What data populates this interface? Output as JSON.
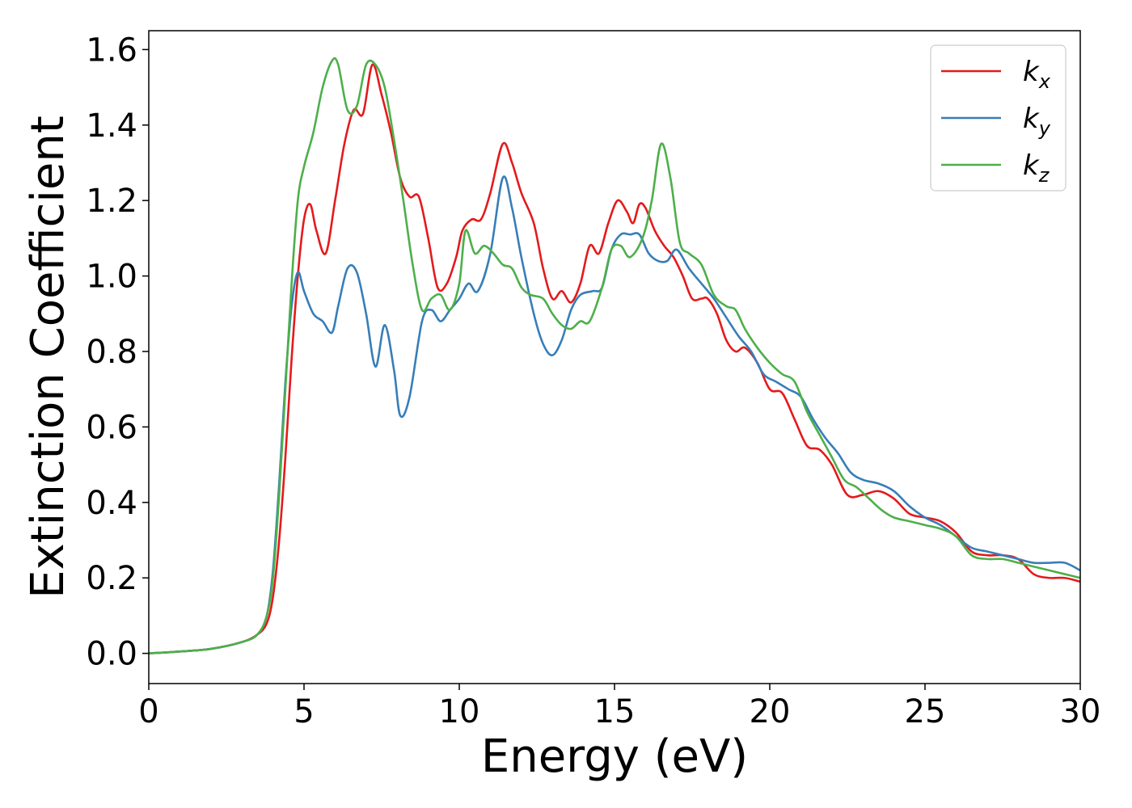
{
  "chart_data": {
    "type": "line",
    "xlabel": "Energy (eV)",
    "ylabel": "Extinction Coefficient",
    "xlim": [
      0,
      30
    ],
    "ylim": [
      -0.08,
      1.65
    ],
    "xticks": [
      0,
      5,
      10,
      15,
      20,
      25,
      30
    ],
    "xtick_labels": [
      "0",
      "5",
      "10",
      "15",
      "20",
      "25",
      "30"
    ],
    "yticks": [
      0.0,
      0.2,
      0.4,
      0.6,
      0.8,
      1.0,
      1.2,
      1.4,
      1.6
    ],
    "ytick_labels": [
      "0.0",
      "0.2",
      "0.4",
      "0.6",
      "0.8",
      "1.0",
      "1.2",
      "1.4",
      "1.6"
    ],
    "grid": false,
    "legend_position": "top-right",
    "series": [
      {
        "name": "k",
        "subscript": "x",
        "color": "#e41a1c",
        "points": [
          [
            0,
            0
          ],
          [
            1,
            0.005
          ],
          [
            2,
            0.012
          ],
          [
            3,
            0.03
          ],
          [
            3.5,
            0.05
          ],
          [
            3.8,
            0.08
          ],
          [
            4.0,
            0.15
          ],
          [
            4.2,
            0.3
          ],
          [
            4.4,
            0.52
          ],
          [
            4.6,
            0.78
          ],
          [
            4.8,
            1.0
          ],
          [
            5.0,
            1.15
          ],
          [
            5.2,
            1.19
          ],
          [
            5.4,
            1.12
          ],
          [
            5.7,
            1.06
          ],
          [
            6.0,
            1.2
          ],
          [
            6.3,
            1.35
          ],
          [
            6.6,
            1.44
          ],
          [
            6.9,
            1.43
          ],
          [
            7.2,
            1.56
          ],
          [
            7.5,
            1.48
          ],
          [
            7.8,
            1.38
          ],
          [
            8.1,
            1.26
          ],
          [
            8.4,
            1.21
          ],
          [
            8.7,
            1.21
          ],
          [
            9.0,
            1.1
          ],
          [
            9.3,
            0.97
          ],
          [
            9.6,
            0.98
          ],
          [
            9.9,
            1.05
          ],
          [
            10.1,
            1.12
          ],
          [
            10.4,
            1.15
          ],
          [
            10.7,
            1.15
          ],
          [
            11.0,
            1.22
          ],
          [
            11.4,
            1.35
          ],
          [
            11.7,
            1.3
          ],
          [
            12.0,
            1.22
          ],
          [
            12.4,
            1.14
          ],
          [
            12.7,
            1.02
          ],
          [
            13.0,
            0.94
          ],
          [
            13.3,
            0.96
          ],
          [
            13.6,
            0.93
          ],
          [
            13.9,
            0.98
          ],
          [
            14.2,
            1.08
          ],
          [
            14.5,
            1.06
          ],
          [
            14.8,
            1.14
          ],
          [
            15.1,
            1.2
          ],
          [
            15.4,
            1.17
          ],
          [
            15.6,
            1.14
          ],
          [
            15.8,
            1.19
          ],
          [
            16.0,
            1.18
          ],
          [
            16.3,
            1.12
          ],
          [
            16.6,
            1.08
          ],
          [
            16.9,
            1.05
          ],
          [
            17.2,
            1.0
          ],
          [
            17.5,
            0.94
          ],
          [
            17.8,
            0.94
          ],
          [
            18.0,
            0.94
          ],
          [
            18.3,
            0.9
          ],
          [
            18.6,
            0.83
          ],
          [
            18.9,
            0.8
          ],
          [
            19.2,
            0.81
          ],
          [
            19.6,
            0.77
          ],
          [
            20.0,
            0.7
          ],
          [
            20.4,
            0.69
          ],
          [
            20.8,
            0.62
          ],
          [
            21.2,
            0.55
          ],
          [
            21.6,
            0.54
          ],
          [
            22.0,
            0.5
          ],
          [
            22.5,
            0.42
          ],
          [
            23.0,
            0.42
          ],
          [
            23.5,
            0.43
          ],
          [
            24.0,
            0.41
          ],
          [
            24.5,
            0.37
          ],
          [
            25.0,
            0.36
          ],
          [
            25.5,
            0.35
          ],
          [
            26.0,
            0.32
          ],
          [
            26.5,
            0.27
          ],
          [
            27.0,
            0.26
          ],
          [
            27.5,
            0.26
          ],
          [
            28.0,
            0.25
          ],
          [
            28.5,
            0.21
          ],
          [
            29.0,
            0.2
          ],
          [
            29.5,
            0.2
          ],
          [
            30,
            0.19
          ]
        ]
      },
      {
        "name": "k",
        "subscript": "y",
        "color": "#377eb8",
        "points": [
          [
            0,
            0
          ],
          [
            1,
            0.005
          ],
          [
            2,
            0.012
          ],
          [
            3,
            0.03
          ],
          [
            3.5,
            0.05
          ],
          [
            3.8,
            0.1
          ],
          [
            4.0,
            0.22
          ],
          [
            4.2,
            0.45
          ],
          [
            4.4,
            0.72
          ],
          [
            4.6,
            0.92
          ],
          [
            4.8,
            1.01
          ],
          [
            5.0,
            0.96
          ],
          [
            5.3,
            0.9
          ],
          [
            5.6,
            0.88
          ],
          [
            5.9,
            0.85
          ],
          [
            6.1,
            0.92
          ],
          [
            6.4,
            1.02
          ],
          [
            6.7,
            1.01
          ],
          [
            7.0,
            0.9
          ],
          [
            7.3,
            0.76
          ],
          [
            7.6,
            0.87
          ],
          [
            7.9,
            0.75
          ],
          [
            8.1,
            0.63
          ],
          [
            8.4,
            0.68
          ],
          [
            8.8,
            0.88
          ],
          [
            9.1,
            0.91
          ],
          [
            9.4,
            0.88
          ],
          [
            9.7,
            0.91
          ],
          [
            10.0,
            0.94
          ],
          [
            10.3,
            0.98
          ],
          [
            10.6,
            0.96
          ],
          [
            11.0,
            1.06
          ],
          [
            11.4,
            1.26
          ],
          [
            11.7,
            1.18
          ],
          [
            12.0,
            1.05
          ],
          [
            12.4,
            0.9
          ],
          [
            12.7,
            0.82
          ],
          [
            13.0,
            0.79
          ],
          [
            13.3,
            0.83
          ],
          [
            13.6,
            0.91
          ],
          [
            13.9,
            0.95
          ],
          [
            14.3,
            0.96
          ],
          [
            14.6,
            0.97
          ],
          [
            14.9,
            1.07
          ],
          [
            15.2,
            1.11
          ],
          [
            15.5,
            1.11
          ],
          [
            15.8,
            1.11
          ],
          [
            16.1,
            1.06
          ],
          [
            16.4,
            1.04
          ],
          [
            16.7,
            1.04
          ],
          [
            17.0,
            1.07
          ],
          [
            17.4,
            1.02
          ],
          [
            17.8,
            0.98
          ],
          [
            18.2,
            0.94
          ],
          [
            18.6,
            0.89
          ],
          [
            19.0,
            0.84
          ],
          [
            19.4,
            0.8
          ],
          [
            19.8,
            0.74
          ],
          [
            20.2,
            0.72
          ],
          [
            20.6,
            0.7
          ],
          [
            21.0,
            0.68
          ],
          [
            21.4,
            0.62
          ],
          [
            21.8,
            0.57
          ],
          [
            22.2,
            0.53
          ],
          [
            22.6,
            0.48
          ],
          [
            23.0,
            0.46
          ],
          [
            23.5,
            0.45
          ],
          [
            24.0,
            0.43
          ],
          [
            24.5,
            0.39
          ],
          [
            25.0,
            0.36
          ],
          [
            25.5,
            0.34
          ],
          [
            26.0,
            0.31
          ],
          [
            26.5,
            0.28
          ],
          [
            27.0,
            0.27
          ],
          [
            27.5,
            0.26
          ],
          [
            28.0,
            0.25
          ],
          [
            28.5,
            0.24
          ],
          [
            29.0,
            0.24
          ],
          [
            29.5,
            0.24
          ],
          [
            30,
            0.22
          ]
        ]
      },
      {
        "name": "k",
        "subscript": "z",
        "color": "#4daf4a",
        "points": [
          [
            0,
            0
          ],
          [
            1,
            0.005
          ],
          [
            2,
            0.012
          ],
          [
            3,
            0.03
          ],
          [
            3.5,
            0.05
          ],
          [
            3.8,
            0.1
          ],
          [
            4.0,
            0.2
          ],
          [
            4.2,
            0.42
          ],
          [
            4.4,
            0.7
          ],
          [
            4.6,
            0.98
          ],
          [
            4.8,
            1.2
          ],
          [
            5.0,
            1.29
          ],
          [
            5.3,
            1.38
          ],
          [
            5.6,
            1.5
          ],
          [
            5.9,
            1.57
          ],
          [
            6.1,
            1.56
          ],
          [
            6.4,
            1.44
          ],
          [
            6.7,
            1.45
          ],
          [
            7.0,
            1.56
          ],
          [
            7.3,
            1.56
          ],
          [
            7.6,
            1.5
          ],
          [
            7.9,
            1.36
          ],
          [
            8.2,
            1.2
          ],
          [
            8.5,
            1.03
          ],
          [
            8.8,
            0.91
          ],
          [
            9.1,
            0.94
          ],
          [
            9.4,
            0.95
          ],
          [
            9.7,
            0.91
          ],
          [
            10.0,
            0.98
          ],
          [
            10.2,
            1.12
          ],
          [
            10.5,
            1.06
          ],
          [
            10.8,
            1.08
          ],
          [
            11.1,
            1.06
          ],
          [
            11.4,
            1.03
          ],
          [
            11.7,
            1.02
          ],
          [
            12.0,
            0.97
          ],
          [
            12.3,
            0.95
          ],
          [
            12.7,
            0.94
          ],
          [
            13.0,
            0.9
          ],
          [
            13.3,
            0.87
          ],
          [
            13.6,
            0.86
          ],
          [
            13.9,
            0.88
          ],
          [
            14.2,
            0.88
          ],
          [
            14.6,
            0.97
          ],
          [
            14.9,
            1.07
          ],
          [
            15.2,
            1.08
          ],
          [
            15.5,
            1.05
          ],
          [
            15.9,
            1.1
          ],
          [
            16.2,
            1.2
          ],
          [
            16.5,
            1.35
          ],
          [
            16.8,
            1.26
          ],
          [
            17.1,
            1.09
          ],
          [
            17.4,
            1.06
          ],
          [
            17.8,
            1.03
          ],
          [
            18.2,
            0.95
          ],
          [
            18.6,
            0.92
          ],
          [
            18.9,
            0.91
          ],
          [
            19.2,
            0.86
          ],
          [
            19.6,
            0.81
          ],
          [
            20.0,
            0.77
          ],
          [
            20.4,
            0.74
          ],
          [
            20.8,
            0.72
          ],
          [
            21.2,
            0.64
          ],
          [
            21.6,
            0.58
          ],
          [
            22.0,
            0.52
          ],
          [
            22.4,
            0.46
          ],
          [
            22.8,
            0.44
          ],
          [
            23.2,
            0.41
          ],
          [
            23.6,
            0.38
          ],
          [
            24.0,
            0.36
          ],
          [
            24.5,
            0.35
          ],
          [
            25.0,
            0.34
          ],
          [
            25.5,
            0.33
          ],
          [
            26.0,
            0.31
          ],
          [
            26.5,
            0.26
          ],
          [
            27.0,
            0.25
          ],
          [
            27.5,
            0.25
          ],
          [
            28.0,
            0.24
          ],
          [
            28.5,
            0.23
          ],
          [
            29.0,
            0.22
          ],
          [
            29.5,
            0.21
          ],
          [
            30,
            0.2
          ]
        ]
      }
    ]
  }
}
